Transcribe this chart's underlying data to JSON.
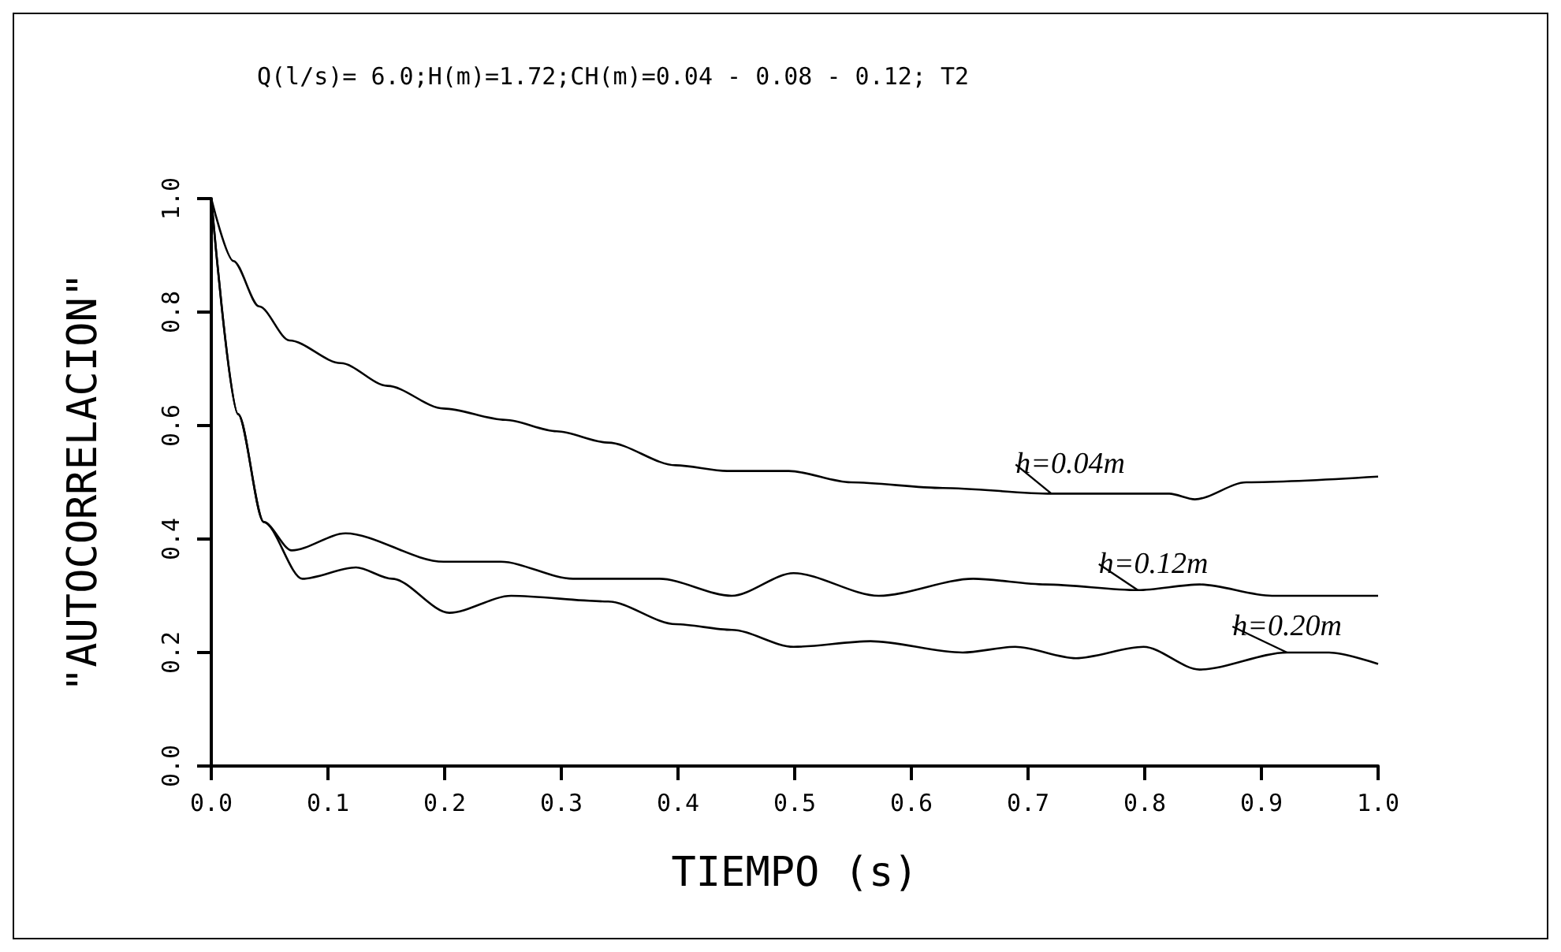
{
  "chart_data": {
    "type": "line",
    "title": "Q(l/s)= 6.0;H(m)=1.72;CH(m)=0.04 - 0.08 - 0.12; T2",
    "xlabel": "TIEMPO (s)",
    "ylabel": "\"AUTOCORRELACION\"",
    "xlim": [
      0,
      1
    ],
    "ylim": [
      0,
      1
    ],
    "xticks": [
      {
        "value": 0,
        "label": "0.0"
      },
      {
        "value": 0.1,
        "label": "0.1"
      },
      {
        "value": 0.2,
        "label": "0.2"
      },
      {
        "value": 0.3,
        "label": "0.3"
      },
      {
        "value": 0.4,
        "label": "0.4"
      },
      {
        "value": 0.5,
        "label": "0.5"
      },
      {
        "value": 0.6,
        "label": "0.6"
      },
      {
        "value": 0.7,
        "label": "0.7"
      },
      {
        "value": 0.8,
        "label": "0.8"
      },
      {
        "value": 0.9,
        "label": "0.9"
      },
      {
        "value": 1,
        "label": "1.0"
      }
    ],
    "yticks": [
      {
        "value": 0,
        "label": "0.0"
      },
      {
        "value": 0.2,
        "label": "0.2"
      },
      {
        "value": 0.4,
        "label": "0.4"
      },
      {
        "value": 0.6,
        "label": "0.6"
      },
      {
        "value": 0.8,
        "label": "0.8"
      },
      {
        "value": 1,
        "label": "1.0"
      }
    ],
    "grid": false,
    "legend": false,
    "marker": "none",
    "line_style": "solid",
    "series": [
      {
        "name": "h=0.04m",
        "color": "#000000",
        "x": [
          0,
          0.019,
          0.041,
          0.067,
          0.111,
          0.151,
          0.199,
          0.252,
          0.296,
          0.34,
          0.398,
          0.442,
          0.495,
          0.548,
          0.627,
          0.72,
          0.821,
          0.843,
          0.887,
          1.0
        ],
        "values": [
          1.0,
          0.89,
          0.81,
          0.75,
          0.71,
          0.67,
          0.63,
          0.61,
          0.59,
          0.57,
          0.53,
          0.52,
          0.52,
          0.5,
          0.49,
          0.48,
          0.48,
          0.47,
          0.5,
          0.51
        ]
      },
      {
        "name": "h=0.12m",
        "color": "#000000",
        "x": [
          0,
          0.023,
          0.045,
          0.069,
          0.115,
          0.199,
          0.248,
          0.31,
          0.384,
          0.446,
          0.499,
          0.572,
          0.653,
          0.715,
          0.794,
          0.847,
          0.909,
          1.0
        ],
        "values": [
          1.0,
          0.62,
          0.43,
          0.38,
          0.41,
          0.36,
          0.36,
          0.33,
          0.33,
          0.3,
          0.34,
          0.3,
          0.33,
          0.32,
          0.31,
          0.32,
          0.3,
          0.3
        ]
      },
      {
        "name": "h=0.20m",
        "color": "#000000",
        "x": [
          0,
          0.023,
          0.045,
          0.078,
          0.124,
          0.155,
          0.204,
          0.257,
          0.34,
          0.398,
          0.446,
          0.499,
          0.565,
          0.644,
          0.689,
          0.741,
          0.799,
          0.847,
          0.922,
          0.958,
          1.0
        ],
        "values": [
          1.0,
          0.62,
          0.43,
          0.33,
          0.35,
          0.33,
          0.27,
          0.3,
          0.29,
          0.25,
          0.24,
          0.21,
          0.22,
          0.2,
          0.21,
          0.19,
          0.21,
          0.17,
          0.2,
          0.2,
          0.18
        ]
      }
    ]
  }
}
